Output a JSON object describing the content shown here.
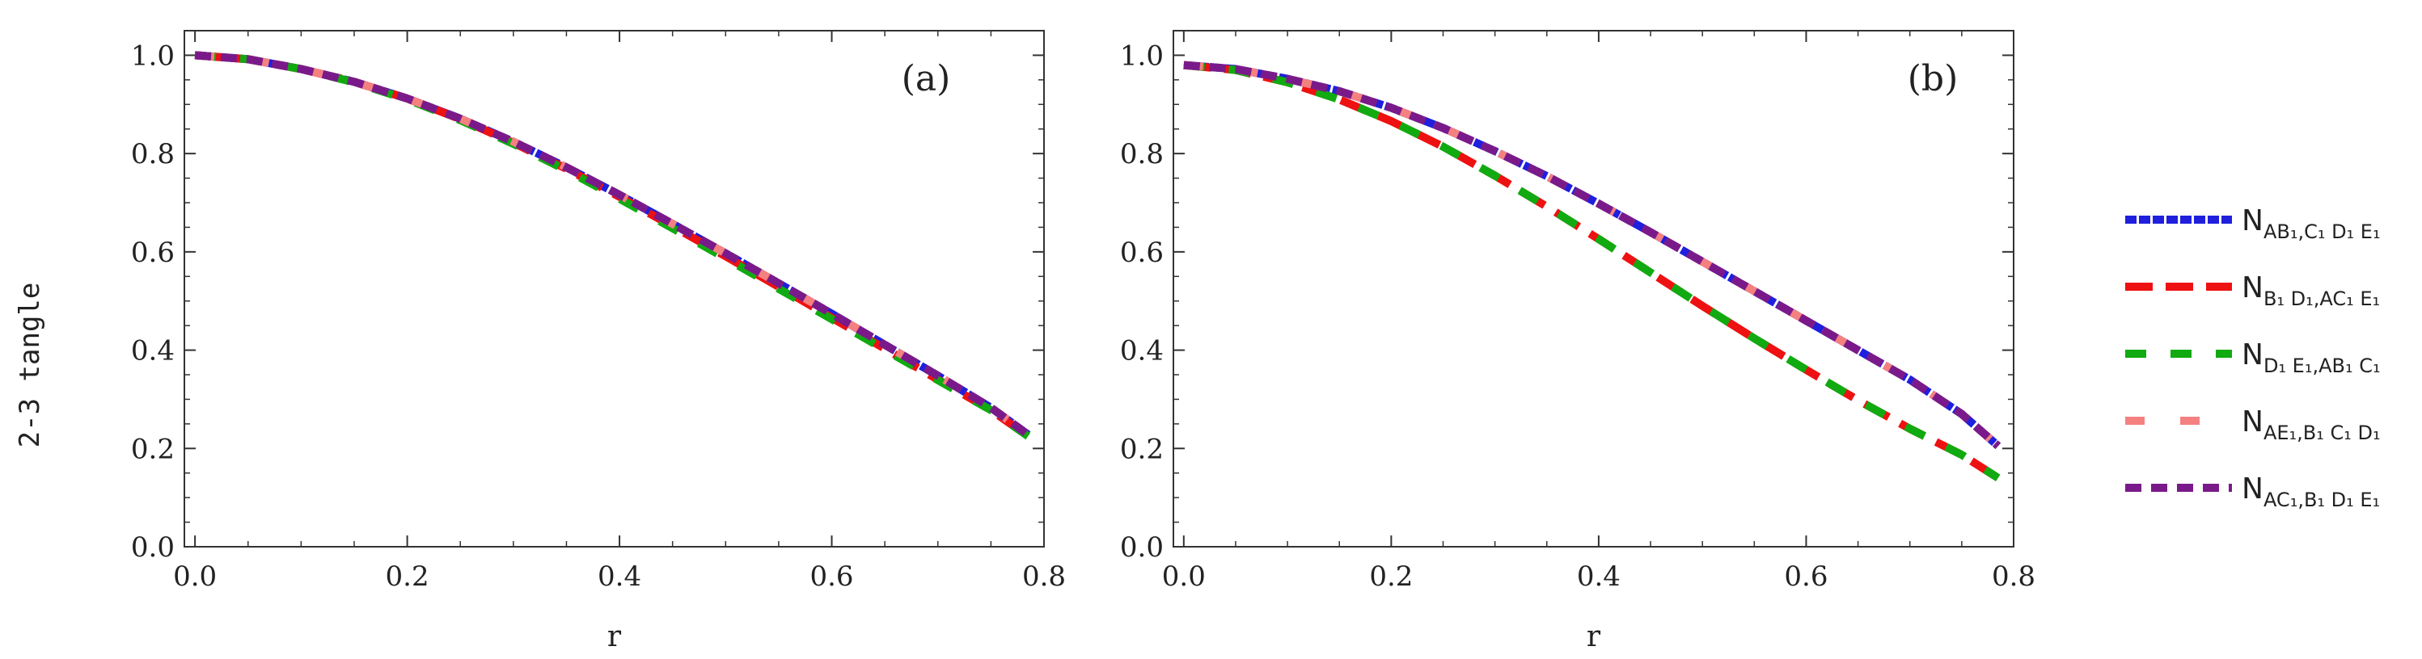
{
  "figure": {
    "ylabel": "2-3 tangle",
    "xlabel": "r"
  },
  "chart_data": [
    {
      "type": "line",
      "panel_label": "(a)",
      "xlabel": "r",
      "ylabel": "2-3 tangle",
      "xlim": [
        -0.01,
        0.8
      ],
      "ylim": [
        0.0,
        1.05
      ],
      "xticks": [
        0.0,
        0.2,
        0.4,
        0.6,
        0.8
      ],
      "xtick_labels": [
        "0.0",
        "0.2",
        "0.4",
        "0.6",
        "0.8"
      ],
      "yticks": [
        0.0,
        0.2,
        0.4,
        0.6,
        0.8,
        1.0
      ],
      "ytick_labels": [
        "0.0",
        "0.2",
        "0.4",
        "0.6",
        "0.8",
        "1.0"
      ],
      "x": [
        0.0,
        0.05,
        0.1,
        0.15,
        0.2,
        0.25,
        0.3,
        0.35,
        0.4,
        0.45,
        0.5,
        0.55,
        0.6,
        0.65,
        0.7,
        0.75,
        0.785
      ],
      "series": [
        {
          "name": "N_AB1,C1D1E1",
          "color": "#1f1fdd",
          "dash": "solid",
          "values": [
            1.0,
            0.992,
            0.972,
            0.946,
            0.912,
            0.871,
            0.824,
            0.772,
            0.716,
            0.657,
            0.597,
            0.536,
            0.474,
            0.411,
            0.348,
            0.283,
            0.228
          ]
        },
        {
          "name": "N_B1D1,AC1E1",
          "color": "#ee1111",
          "dash": "long-dash",
          "values": [
            1.0,
            0.992,
            0.972,
            0.946,
            0.912,
            0.87,
            0.822,
            0.769,
            0.712,
            0.652,
            0.591,
            0.529,
            0.466,
            0.403,
            0.34,
            0.278,
            0.225
          ]
        },
        {
          "name": "N_D1E1,AB1C1",
          "color": "#11aa11",
          "dash": "dash-gap",
          "values": [
            1.0,
            0.992,
            0.972,
            0.945,
            0.91,
            0.868,
            0.82,
            0.766,
            0.708,
            0.648,
            0.587,
            0.525,
            0.463,
            0.401,
            0.339,
            0.278,
            0.225
          ]
        },
        {
          "name": "N_AE1,B1C1D1",
          "color": "#f48080",
          "dash": "sparse-dash",
          "values": [
            1.0,
            0.992,
            0.972,
            0.946,
            0.912,
            0.871,
            0.824,
            0.772,
            0.716,
            0.657,
            0.597,
            0.536,
            0.474,
            0.411,
            0.348,
            0.283,
            0.228
          ]
        },
        {
          "name": "N_AC1,B1D1E1",
          "color": "#7a1a8a",
          "dash": "medium-dash",
          "values": [
            1.0,
            0.992,
            0.972,
            0.946,
            0.912,
            0.871,
            0.824,
            0.772,
            0.716,
            0.657,
            0.597,
            0.536,
            0.474,
            0.411,
            0.348,
            0.283,
            0.228
          ]
        }
      ]
    },
    {
      "type": "line",
      "panel_label": "(b)",
      "xlabel": "r",
      "ylabel": "",
      "xlim": [
        -0.01,
        0.8
      ],
      "ylim": [
        0.0,
        1.05
      ],
      "xticks": [
        0.0,
        0.2,
        0.4,
        0.6,
        0.8
      ],
      "xtick_labels": [
        "0.0",
        "0.2",
        "0.4",
        "0.6",
        "0.8"
      ],
      "yticks": [
        0.0,
        0.2,
        0.4,
        0.6,
        0.8,
        1.0
      ],
      "ytick_labels": [
        "0.0",
        "0.2",
        "0.4",
        "0.6",
        "0.8",
        "1.0"
      ],
      "x": [
        0.0,
        0.05,
        0.1,
        0.15,
        0.2,
        0.25,
        0.3,
        0.35,
        0.4,
        0.45,
        0.5,
        0.55,
        0.6,
        0.65,
        0.7,
        0.75,
        0.785
      ],
      "series": [
        {
          "name": "N_AB1,C1D1E1",
          "color": "#1f1fdd",
          "dash": "solid",
          "values": [
            0.98,
            0.972,
            0.952,
            0.927,
            0.893,
            0.852,
            0.805,
            0.754,
            0.698,
            0.64,
            0.58,
            0.52,
            0.46,
            0.4,
            0.34,
            0.27,
            0.205
          ]
        },
        {
          "name": "N_B1D1,AC1E1",
          "color": "#ee1111",
          "dash": "long-dash",
          "values": [
            0.98,
            0.97,
            0.945,
            0.91,
            0.866,
            0.814,
            0.755,
            0.692,
            0.626,
            0.558,
            0.49,
            0.424,
            0.36,
            0.298,
            0.24,
            0.187,
            0.14
          ]
        },
        {
          "name": "N_D1E1,AB1C1",
          "color": "#11aa11",
          "dash": "dash-gap",
          "values": [
            0.98,
            0.97,
            0.945,
            0.91,
            0.866,
            0.814,
            0.755,
            0.692,
            0.626,
            0.558,
            0.49,
            0.424,
            0.36,
            0.298,
            0.24,
            0.187,
            0.14
          ]
        },
        {
          "name": "N_AE1,B1C1D1",
          "color": "#f48080",
          "dash": "sparse-dash",
          "values": [
            0.98,
            0.972,
            0.952,
            0.927,
            0.893,
            0.852,
            0.805,
            0.754,
            0.698,
            0.64,
            0.58,
            0.52,
            0.46,
            0.4,
            0.34,
            0.27,
            0.205
          ]
        },
        {
          "name": "N_AC1,B1D1E1",
          "color": "#7a1a8a",
          "dash": "medium-dash",
          "values": [
            0.98,
            0.972,
            0.952,
            0.927,
            0.893,
            0.852,
            0.805,
            0.754,
            0.698,
            0.64,
            0.58,
            0.52,
            0.46,
            0.4,
            0.34,
            0.27,
            0.205
          ]
        }
      ]
    }
  ],
  "legend": [
    {
      "main": "N",
      "sub": "AB₁,C₁ D₁ E₁",
      "color": "#1f1fdd",
      "dash": "solid"
    },
    {
      "main": "N",
      "sub": "B₁ D₁,AC₁ E₁",
      "color": "#ee1111",
      "dash": "long-dash"
    },
    {
      "main": "N",
      "sub": "D₁ E₁,AB₁ C₁",
      "color": "#11aa11",
      "dash": "dash-gap"
    },
    {
      "main": "N",
      "sub": "AE₁,B₁ C₁ D₁",
      "color": "#f48080",
      "dash": "sparse-dash"
    },
    {
      "main": "N",
      "sub": "AC₁,B₁ D₁ E₁",
      "color": "#7a1a8a",
      "dash": "medium-dash"
    }
  ]
}
